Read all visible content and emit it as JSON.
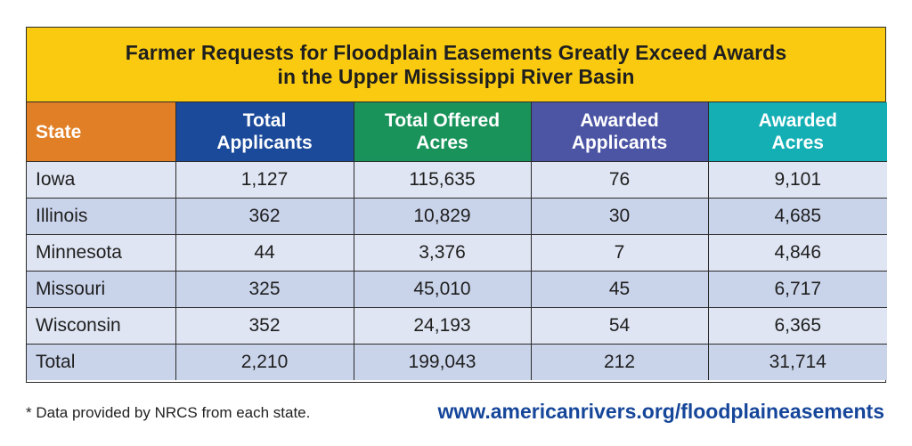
{
  "title": {
    "line1": "Farmer Requests for Floodplain Easements Greatly Exceed Awards",
    "line2": "in the Upper Mississippi River Basin"
  },
  "columns": [
    {
      "line1": "State",
      "line2": "",
      "color": "#e07f25"
    },
    {
      "line1": "Total",
      "line2": "Applicants",
      "color": "#1b4a9a"
    },
    {
      "line1": "Total Offered",
      "line2": "Acres",
      "color": "#19935a"
    },
    {
      "line1": "Awarded",
      "line2": "Applicants",
      "color": "#4b55a3"
    },
    {
      "line1": "Awarded",
      "line2": "Acres",
      "color": "#14aeb5"
    }
  ],
  "rows": [
    [
      "Iowa",
      "1,127",
      "115,635",
      "76",
      "9,101"
    ],
    [
      "Illinois",
      "362",
      "10,829",
      "30",
      "4,685"
    ],
    [
      "Minnesota",
      "44",
      "3,376",
      "7",
      "4,846"
    ],
    [
      "Missouri",
      "325",
      "45,010",
      "45",
      "6,717"
    ],
    [
      "Wisconsin",
      "352",
      "24,193",
      "54",
      "6,365"
    ],
    [
      "Total",
      "2,210",
      "199,043",
      "212",
      "31,714"
    ]
  ],
  "footnote": "* Data provided by NRCS from each state.",
  "url": "www.americanrivers.org/floodplaineasements",
  "colors": {
    "title_bg": "#f9ca10",
    "row_light": "#dfe5f2",
    "row_dark": "#c9d3ea",
    "url": "#15469a"
  }
}
